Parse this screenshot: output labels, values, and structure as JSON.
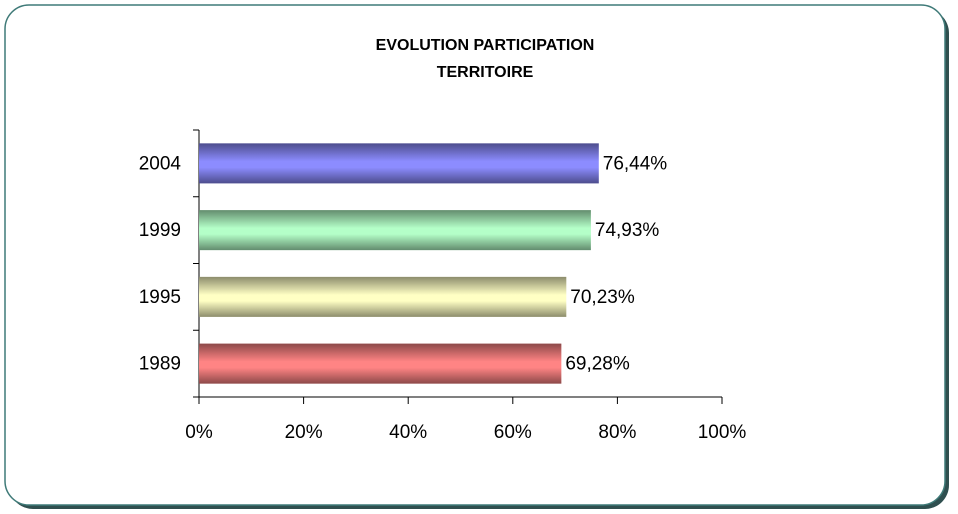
{
  "chart_data": {
    "type": "hbar",
    "title": [
      "EVOLUTION PARTICIPATION",
      "TERRITOIRE"
    ],
    "categories": [
      "2004",
      "1999",
      "1995",
      "1989"
    ],
    "values": [
      76.44,
      74.93,
      70.23,
      69.28
    ],
    "value_labels": [
      "76,44%",
      "74,93%",
      "70,23%",
      "69,28%"
    ],
    "colors": [
      "#8c8cff",
      "#b4ffc8",
      "#ffffc4",
      "#ff8484"
    ],
    "xlim": [
      0,
      100
    ],
    "xticks": [
      {
        "value": 0,
        "label": "0%"
      },
      {
        "value": 20,
        "label": "20%"
      },
      {
        "value": 40,
        "label": "40%"
      },
      {
        "value": 60,
        "label": "60%"
      },
      {
        "value": 80,
        "label": "80%"
      },
      {
        "value": 100,
        "label": "100%"
      }
    ]
  }
}
